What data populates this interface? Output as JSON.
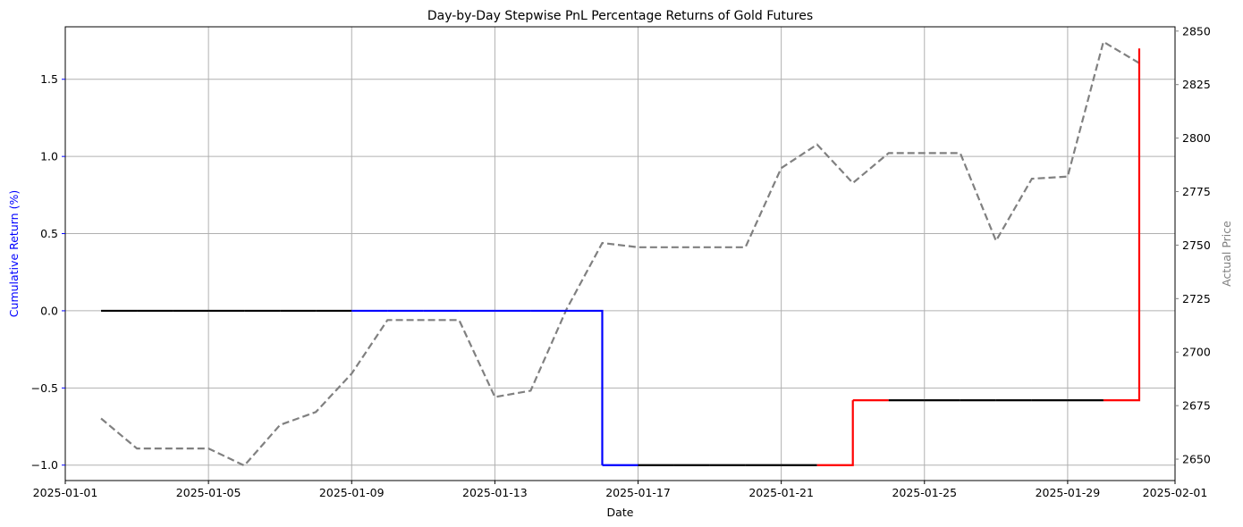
{
  "chart_data": {
    "type": "line",
    "title": "Day-by-Day Stepwise PnL Percentage Returns of Gold Futures",
    "xlabel": "Date",
    "ylabel_left": "Cumulative Return (%)",
    "ylabel_right": "Actual Price",
    "xlim": [
      "2025-01-01",
      "2025-02-01"
    ],
    "ylim_left": [
      -1.1,
      1.84
    ],
    "ylim_right": [
      2640,
      2852
    ],
    "x_ticks": [
      "2025-01-01",
      "2025-01-05",
      "2025-01-09",
      "2025-01-13",
      "2025-01-17",
      "2025-01-21",
      "2025-01-25",
      "2025-01-29",
      "2025-02-01"
    ],
    "y_ticks_left": [
      "−1.0",
      "−0.5",
      "0.0",
      "0.5",
      "1.0",
      "1.5"
    ],
    "y_ticks_right": [
      "2650",
      "2675",
      "2700",
      "2725",
      "2750",
      "2775",
      "2800",
      "2825",
      "2850"
    ],
    "grid": true,
    "colors": {
      "left_axis": "#0000ff",
      "right_axis": "#808080",
      "flat": "#000000",
      "down": "#0000ff",
      "up": "#ff0000",
      "price": "#808080",
      "grid": "#b0b0b0"
    },
    "series": [
      {
        "role": "cumulative_return",
        "style": "step (post), colored by direction: black = flat, blue = loss, red = gain",
        "x": [
          "2025-01-02",
          "2025-01-03",
          "2025-01-04",
          "2025-01-05",
          "2025-01-06",
          "2025-01-07",
          "2025-01-08",
          "2025-01-09",
          "2025-01-10",
          "2025-01-11",
          "2025-01-12",
          "2025-01-13",
          "2025-01-14",
          "2025-01-15",
          "2025-01-16",
          "2025-01-17",
          "2025-01-18",
          "2025-01-19",
          "2025-01-20",
          "2025-01-21",
          "2025-01-22",
          "2025-01-23",
          "2025-01-24",
          "2025-01-25",
          "2025-01-26",
          "2025-01-27",
          "2025-01-28",
          "2025-01-29",
          "2025-01-30",
          "2025-01-31"
        ],
        "values": [
          0.0,
          0.0,
          0.0,
          0.0,
          0.0,
          0.0,
          0.0,
          0.0,
          0.0,
          0.0,
          0.0,
          0.0,
          0.0,
          0.0,
          -1.0,
          -1.0,
          -1.0,
          -1.0,
          -1.0,
          -1.0,
          -1.0,
          -0.58,
          -0.58,
          -0.58,
          -0.58,
          -0.58,
          -0.58,
          -0.58,
          -0.58,
          1.7
        ],
        "segment_colors": [
          "flat",
          "flat",
          "flat",
          "flat",
          "flat",
          "flat",
          "flat",
          "down",
          "down",
          "down",
          "down",
          "down",
          "down",
          "down",
          "down",
          "flat",
          "flat",
          "flat",
          "flat",
          "flat",
          "up",
          "up",
          "flat",
          "flat",
          "flat",
          "flat",
          "flat",
          "flat",
          "up",
          "up"
        ]
      },
      {
        "role": "actual_price",
        "style": "dashed",
        "x": [
          "2025-01-02",
          "2025-01-03",
          "2025-01-04",
          "2025-01-05",
          "2025-01-06",
          "2025-01-07",
          "2025-01-08",
          "2025-01-09",
          "2025-01-10",
          "2025-01-11",
          "2025-01-12",
          "2025-01-13",
          "2025-01-14",
          "2025-01-15",
          "2025-01-16",
          "2025-01-17",
          "2025-01-18",
          "2025-01-19",
          "2025-01-20",
          "2025-01-21",
          "2025-01-22",
          "2025-01-23",
          "2025-01-24",
          "2025-01-25",
          "2025-01-26",
          "2025-01-27",
          "2025-01-28",
          "2025-01-29",
          "2025-01-30",
          "2025-01-31"
        ],
        "values": [
          2669,
          2655,
          2655,
          2655,
          2647,
          2666,
          2672,
          2690,
          2715,
          2715,
          2715,
          2679,
          2682,
          2720,
          2751,
          2749,
          2749,
          2749,
          2749,
          2786,
          2797,
          2779,
          2793,
          2793,
          2793,
          2752,
          2781,
          2782,
          2845,
          2835
        ]
      }
    ]
  }
}
